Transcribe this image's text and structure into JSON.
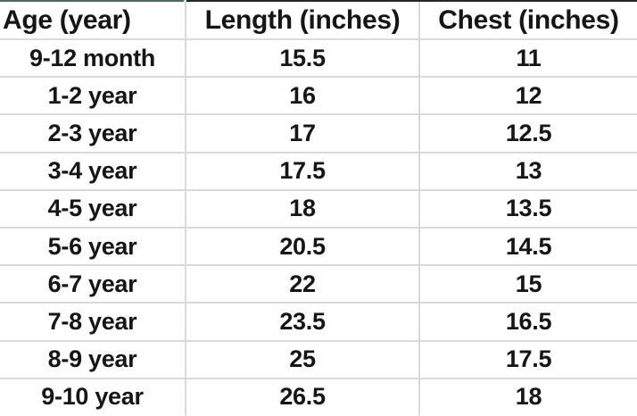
{
  "chart_data": {
    "type": "table",
    "columns": [
      "Age (year)",
      "Length (inches)",
      "Chest (inches)"
    ],
    "rows": [
      [
        "9-12 month",
        "15.5",
        "11"
      ],
      [
        "1-2 year",
        "16",
        "12"
      ],
      [
        "2-3 year",
        "17",
        "12.5"
      ],
      [
        "3-4 year",
        "17.5",
        "13"
      ],
      [
        "4-5 year",
        "18",
        "13.5"
      ],
      [
        "5-6 year",
        "20.5",
        "14.5"
      ],
      [
        "6-7 year",
        "22",
        "15"
      ],
      [
        "7-8 year",
        "23.5",
        "16.5"
      ],
      [
        "8-9 year",
        "25",
        "17.5"
      ],
      [
        "9-10 year",
        "26.5",
        "18"
      ]
    ],
    "layout": {
      "grid": "on",
      "header_row": true,
      "column_alignment": [
        "center",
        "center",
        "center"
      ],
      "header_alignment": [
        "left",
        "center",
        "center"
      ]
    }
  },
  "colors": {
    "background": "#ffffff",
    "text": "#161616",
    "grid_line": "#d9d9d9",
    "top_edge_green": "#44714f",
    "top_edge_dark": "#23281f"
  }
}
